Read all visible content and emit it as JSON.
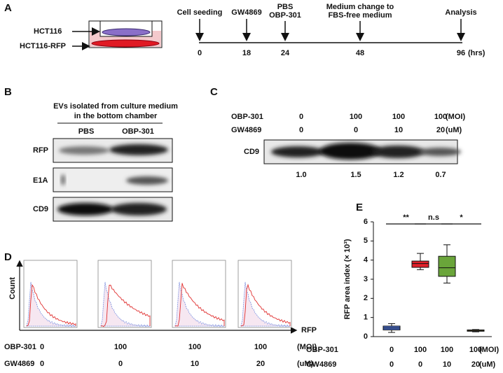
{
  "panel_a": {
    "label": "A",
    "cells": [
      "HCT116",
      "HCT116-RFP"
    ],
    "events": [
      "Cell seeding",
      "GW4869",
      "PBS",
      "OBP-301",
      "Medium change to",
      "FBS-free medium",
      "Analysis"
    ],
    "times": [
      0,
      18,
      24,
      48,
      96
    ],
    "unit": "(hrs)"
  },
  "panel_b": {
    "label": "B",
    "header": [
      "EVs isolated from culture medium",
      "in the bottom chamber"
    ],
    "columns": [
      "PBS",
      "OBP-301"
    ],
    "rows": [
      "RFP",
      "E1A",
      "CD9"
    ]
  },
  "panel_c": {
    "label": "C",
    "table": [
      {
        "label": "OBP-301",
        "values": [
          0,
          100,
          100,
          100
        ],
        "unit": "(MOI)"
      },
      {
        "label": "GW4869",
        "values": [
          0,
          0,
          10,
          20
        ],
        "unit": "(uM)"
      }
    ],
    "blot": "CD9",
    "quantification": [
      "1.0",
      "1.5",
      "1.2",
      "0.7"
    ]
  },
  "panel_d": {
    "label": "D",
    "y_label": "Count",
    "x_label": "RFP",
    "table": [
      {
        "label": "OBP-301",
        "values": [
          0,
          100,
          100,
          100
        ],
        "unit": "(MOI)"
      },
      {
        "label": "GW4869",
        "values": [
          0,
          0,
          10,
          20
        ],
        "unit": "(uM)"
      }
    ]
  },
  "chart_data": {
    "type": "box",
    "label": "E",
    "y_label": "RFP area index (× 10³)",
    "ylim": [
      0,
      6
    ],
    "yticks": [
      0,
      1,
      2,
      3,
      4,
      5,
      6
    ],
    "series": [
      {
        "color": "#4a6fd0",
        "values": [
          0.22,
          0.35,
          0.45,
          0.55,
          0.68
        ]
      },
      {
        "color": "#e0202a",
        "values": [
          3.5,
          3.62,
          3.82,
          3.95,
          4.35
        ]
      },
      {
        "color": "#6aa53a",
        "values": [
          2.8,
          3.15,
          3.6,
          4.2,
          4.8
        ]
      },
      {
        "color": "#b8a050",
        "values": [
          0.25,
          0.28,
          0.32,
          0.35,
          0.37
        ]
      }
    ],
    "significance": [
      "**",
      "n.s",
      "*"
    ],
    "x_table": [
      {
        "label": "OBP-301",
        "values": [
          0,
          100,
          100,
          100
        ],
        "unit": "(MOI)"
      },
      {
        "label": "GW4869",
        "values": [
          0,
          0,
          10,
          20
        ],
        "unit": "(uM)"
      }
    ]
  }
}
